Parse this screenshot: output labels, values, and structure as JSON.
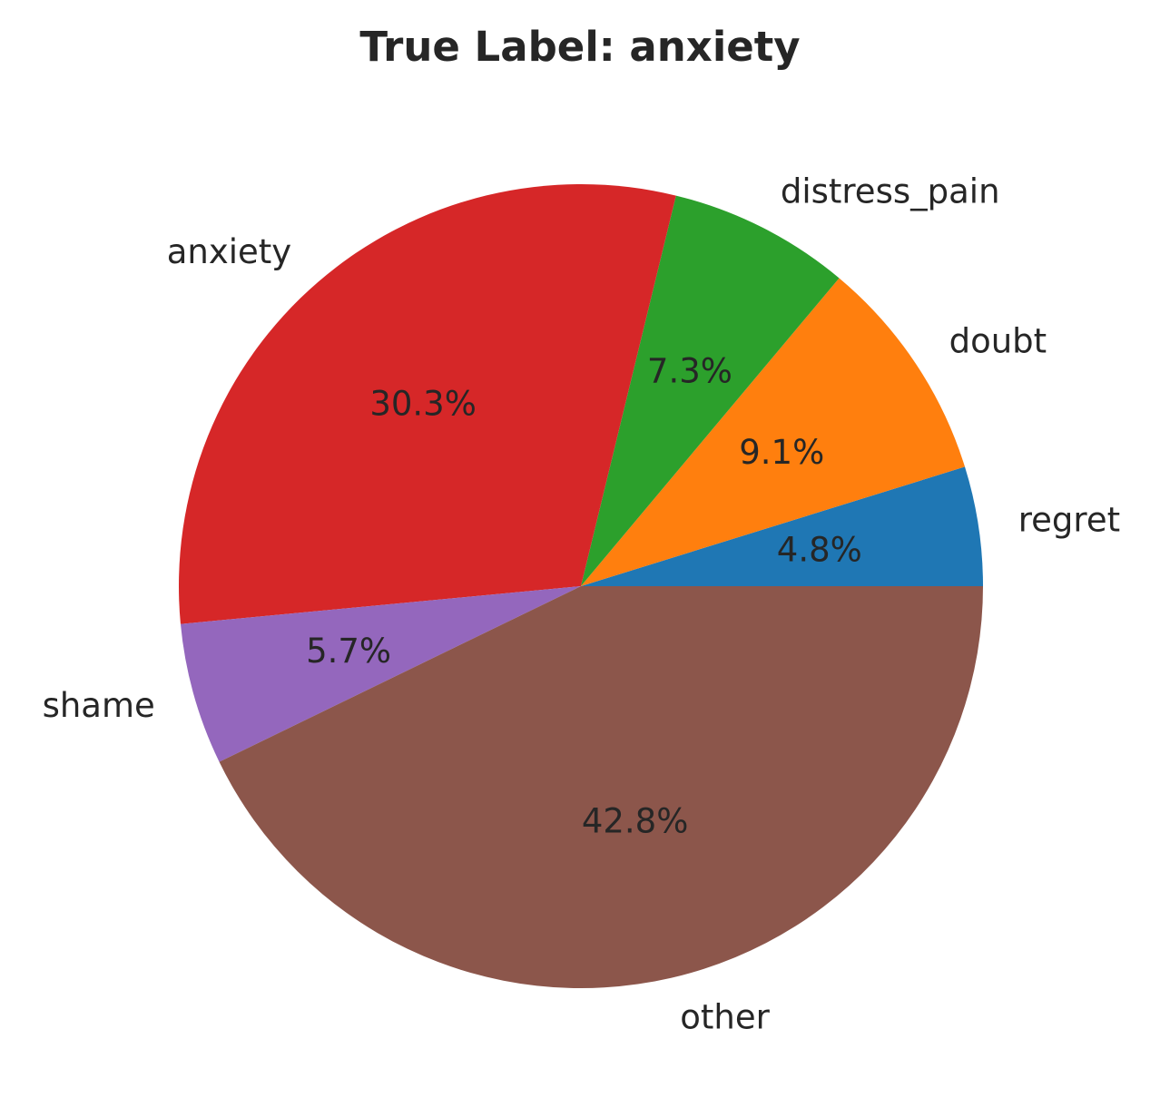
{
  "chart_data": {
    "type": "pie",
    "title": "True Label: anxiety",
    "start_angle_deg": 0,
    "direction": "counterclockwise",
    "slices": [
      {
        "label": "regret",
        "value": 4.8,
        "pct_label": "4.8%",
        "color": "#1f77b4"
      },
      {
        "label": "doubt",
        "value": 9.1,
        "pct_label": "9.1%",
        "color": "#ff7f0e"
      },
      {
        "label": "distress_pain",
        "value": 7.3,
        "pct_label": "7.3%",
        "color": "#2ca02c"
      },
      {
        "label": "anxiety",
        "value": 30.3,
        "pct_label": "30.3%",
        "color": "#d62728"
      },
      {
        "label": "shame",
        "value": 5.7,
        "pct_label": "5.7%",
        "color": "#9467bd"
      },
      {
        "label": "other",
        "value": 42.8,
        "pct_label": "42.8%",
        "color": "#8c564b"
      }
    ]
  }
}
